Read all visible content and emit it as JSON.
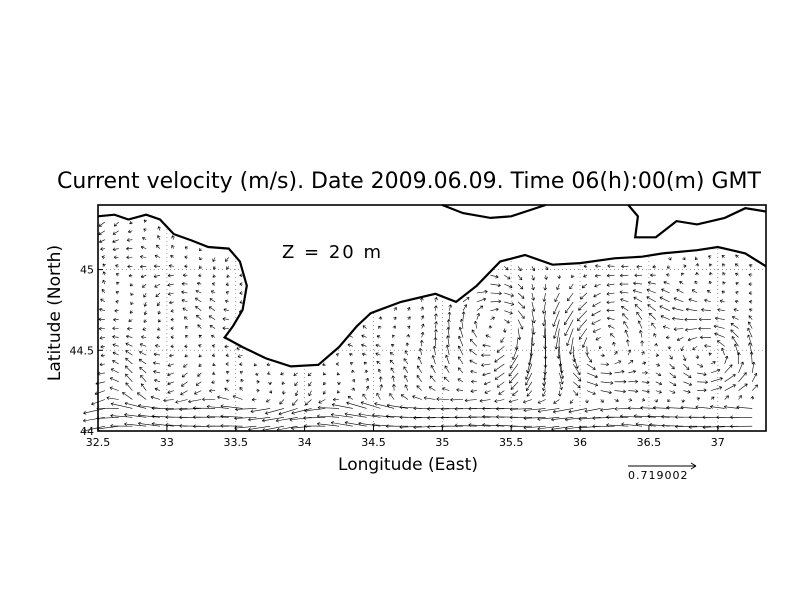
{
  "chart_data": {
    "type": "vector-field",
    "title": "Current velocity (m/s). Date 2009.06.09. Time 06(h):00(m) GMT",
    "xlabel": "Longitude (East)",
    "ylabel": "Latitude (North)",
    "annotation": "Z = 20 m",
    "reference_vector": {
      "value": 0.719002,
      "label": "0.719002"
    },
    "xlim": [
      32.5,
      37.35
    ],
    "ylim": [
      44.0,
      45.4
    ],
    "x_ticks": [
      {
        "value": 32.5,
        "label": "32.5"
      },
      {
        "value": 33,
        "label": "33"
      },
      {
        "value": 33.5,
        "label": "33.5"
      },
      {
        "value": 34,
        "label": "34"
      },
      {
        "value": 34.5,
        "label": "34.5"
      },
      {
        "value": 35,
        "label": "35"
      },
      {
        "value": 35.5,
        "label": "35.5"
      },
      {
        "value": 36,
        "label": "36"
      },
      {
        "value": 36.5,
        "label": "36.5"
      },
      {
        "value": 37,
        "label": "37"
      }
    ],
    "y_ticks": [
      {
        "value": 44,
        "label": "44"
      },
      {
        "value": 44.5,
        "label": "44.5"
      },
      {
        "value": 45,
        "label": "45"
      }
    ],
    "grid": true,
    "grid_style": "dotted",
    "coastline": [
      [
        32.5,
        45.33
      ],
      [
        32.62,
        45.34
      ],
      [
        32.72,
        45.31
      ],
      [
        32.85,
        45.34
      ],
      [
        32.95,
        45.31
      ],
      [
        33.05,
        45.22
      ],
      [
        33.18,
        45.18
      ],
      [
        33.3,
        45.14
      ],
      [
        33.45,
        45.13
      ],
      [
        33.53,
        45.05
      ],
      [
        33.58,
        44.9
      ],
      [
        33.55,
        44.75
      ],
      [
        33.48,
        44.65
      ],
      [
        33.42,
        44.58
      ],
      [
        33.55,
        44.52
      ],
      [
        33.72,
        44.45
      ],
      [
        33.9,
        44.4
      ],
      [
        34.1,
        44.41
      ],
      [
        34.25,
        44.52
      ],
      [
        34.38,
        44.65
      ],
      [
        34.48,
        44.73
      ],
      [
        34.7,
        44.8
      ],
      [
        34.95,
        44.85
      ],
      [
        35.1,
        44.8
      ],
      [
        35.25,
        44.9
      ],
      [
        35.42,
        45.05
      ],
      [
        35.6,
        45.09
      ],
      [
        35.8,
        45.03
      ],
      [
        36.0,
        45.04
      ],
      [
        36.25,
        45.07
      ],
      [
        36.45,
        45.08
      ],
      [
        36.6,
        45.1
      ],
      [
        36.85,
        45.12
      ],
      [
        37.0,
        45.14
      ],
      [
        37.1,
        45.12
      ],
      [
        37.2,
        45.1
      ],
      [
        37.35,
        45.02
      ]
    ],
    "northern_coast": [
      [
        35.0,
        45.4
      ],
      [
        35.15,
        45.35
      ],
      [
        35.35,
        45.32
      ],
      [
        35.5,
        45.33
      ],
      [
        35.75,
        45.4
      ]
    ],
    "kerch_coast": [
      [
        36.35,
        45.4
      ],
      [
        36.42,
        45.33
      ],
      [
        36.4,
        45.2
      ],
      [
        36.55,
        45.2
      ],
      [
        36.7,
        45.3
      ],
      [
        36.85,
        45.28
      ],
      [
        37.05,
        45.32
      ],
      [
        37.2,
        45.38
      ],
      [
        37.35,
        45.36
      ]
    ]
  }
}
